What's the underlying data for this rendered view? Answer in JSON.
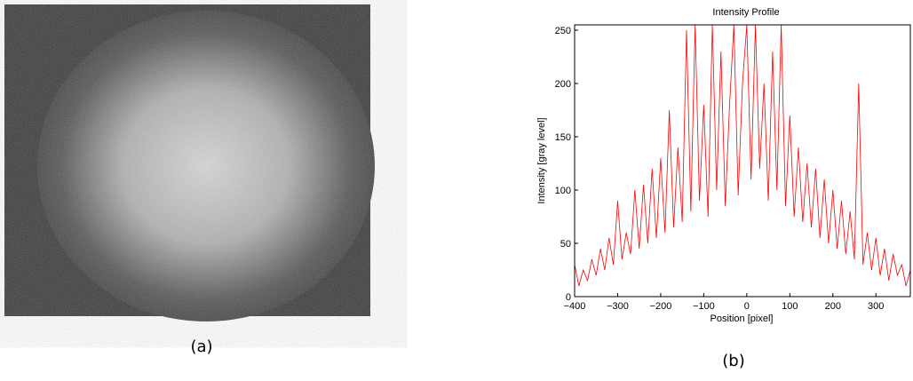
{
  "captions": [
    "(a)",
    "(b)"
  ],
  "chart_data": {
    "type": "line",
    "title": "Intensity Profile",
    "x_label": "Position [pixel]",
    "y_label": "Intensity [gray level]",
    "xlim": [
      -400,
      380
    ],
    "ylim": [
      0,
      255
    ],
    "xticks": [
      {
        "value": -400,
        "label": "−400"
      },
      {
        "value": -300,
        "label": "−300"
      },
      {
        "value": -200,
        "label": "−200"
      },
      {
        "value": -100,
        "label": "−100"
      },
      0,
      100,
      200,
      300
    ],
    "yticks": [
      0,
      50,
      100,
      150,
      200,
      250
    ],
    "x": [
      -400,
      -390,
      -380,
      -370,
      -360,
      -350,
      -340,
      -330,
      -320,
      -310,
      -300,
      -290,
      -280,
      -270,
      -260,
      -250,
      -240,
      -230,
      -220,
      -210,
      -200,
      -190,
      -180,
      -170,
      -160,
      -150,
      -140,
      -130,
      -120,
      -110,
      -100,
      -90,
      -80,
      -70,
      -60,
      -50,
      -40,
      -30,
      -20,
      -10,
      0,
      10,
      20,
      30,
      40,
      50,
      60,
      70,
      80,
      90,
      100,
      110,
      120,
      130,
      140,
      150,
      160,
      170,
      180,
      190,
      200,
      210,
      220,
      230,
      240,
      250,
      260,
      270,
      280,
      290,
      300,
      310,
      320,
      330,
      340,
      350,
      360,
      370,
      380
    ],
    "series": [
      {
        "color": "#ff0000",
        "values": [
          30,
          10,
          25,
          15,
          35,
          20,
          45,
          25,
          55,
          30,
          90,
          35,
          60,
          40,
          100,
          45,
          105,
          50,
          120,
          55,
          130,
          60,
          175,
          65,
          140,
          70,
          250,
          80,
          255,
          90,
          180,
          75,
          255,
          100,
          230,
          85,
          180,
          255,
          95,
          200,
          255,
          110,
          255,
          120,
          200,
          90,
          230,
          100,
          255,
          85,
          170,
          75,
          140,
          70,
          125,
          65,
          120,
          55,
          110,
          50,
          100,
          45,
          90,
          40,
          80,
          35,
          200,
          30,
          60,
          25,
          55,
          20,
          45,
          15,
          40,
          20,
          30,
          10,
          25
        ]
      }
    ]
  }
}
